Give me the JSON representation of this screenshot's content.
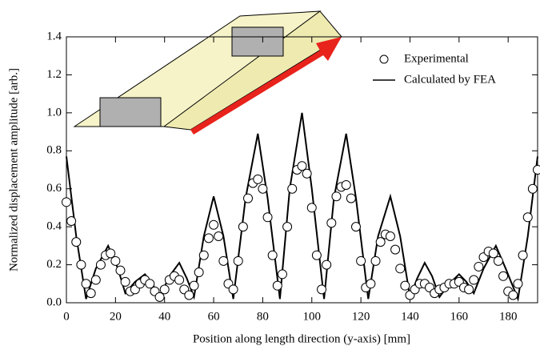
{
  "chart_data": {
    "type": "scatter-line",
    "x_label": "Position along length direction (y-axis) [mm]",
    "y_label": "Normalized displacement amplitude [arb.]",
    "xlim": [
      0,
      192
    ],
    "ylim": [
      0,
      1.4
    ],
    "xticks": [
      0,
      20,
      40,
      60,
      80,
      100,
      120,
      140,
      160,
      180
    ],
    "yticks": [
      {
        "value": 0,
        "label": "0.0"
      },
      0.2,
      0.4,
      0.6,
      0.8,
      {
        "value": 1,
        "label": "1.0"
      },
      1.2,
      1.4
    ],
    "series": [
      {
        "name": "Experimental",
        "kind": "scatter",
        "color": "#000000",
        "x": [
          0,
          2,
          4,
          6,
          8,
          10,
          12,
          14,
          16,
          18,
          20,
          22,
          24,
          26,
          28,
          30,
          32,
          34,
          36,
          38,
          40,
          42,
          44,
          46,
          48,
          50,
          52,
          54,
          56,
          58,
          60,
          62,
          64,
          66,
          68,
          70,
          72,
          74,
          76,
          78,
          80,
          82,
          84,
          86,
          88,
          90,
          92,
          94,
          96,
          98,
          100,
          102,
          104,
          106,
          108,
          110,
          112,
          114,
          116,
          118,
          120,
          122,
          124,
          126,
          128,
          130,
          132,
          134,
          136,
          138,
          140,
          142,
          144,
          146,
          148,
          150,
          152,
          154,
          156,
          158,
          160,
          162,
          164,
          166,
          168,
          170,
          172,
          174,
          176,
          178,
          180,
          182,
          184,
          186,
          188,
          190,
          192
        ],
        "values": [
          0.53,
          0.43,
          0.32,
          0.2,
          0.1,
          0.05,
          0.12,
          0.2,
          0.25,
          0.26,
          0.22,
          0.17,
          0.11,
          0.06,
          0.07,
          0.1,
          0.12,
          0.1,
          0.06,
          0.03,
          0.07,
          0.12,
          0.14,
          0.12,
          0.07,
          0.04,
          0.09,
          0.16,
          0.25,
          0.34,
          0.41,
          0.35,
          0.22,
          0.1,
          0.07,
          0.22,
          0.4,
          0.55,
          0.63,
          0.65,
          0.6,
          0.45,
          0.25,
          0.09,
          0.15,
          0.4,
          0.6,
          0.7,
          0.72,
          0.68,
          0.5,
          0.25,
          0.07,
          0.2,
          0.42,
          0.56,
          0.61,
          0.62,
          0.55,
          0.4,
          0.22,
          0.08,
          0.1,
          0.22,
          0.32,
          0.36,
          0.35,
          0.28,
          0.18,
          0.09,
          0.04,
          0.07,
          0.1,
          0.1,
          0.08,
          0.05,
          0.07,
          0.08,
          0.1,
          0.1,
          0.11,
          0.08,
          0.07,
          0.12,
          0.19,
          0.24,
          0.27,
          0.26,
          0.22,
          0.14,
          0.06,
          0.04,
          0.1,
          0.25,
          0.45,
          0.6,
          0.7
        ]
      },
      {
        "name": "Calculated by FEA",
        "kind": "line",
        "color": "#000000",
        "x": [
          0,
          4,
          8,
          12,
          17,
          21,
          24,
          28,
          32,
          35,
          38,
          42,
          46,
          49,
          52,
          56,
          60,
          64,
          68,
          73,
          78,
          82,
          87,
          91,
          96,
          100,
          105,
          109,
          114,
          118,
          123,
          127,
          132,
          136,
          140,
          143,
          146,
          149,
          152,
          156,
          160,
          163,
          166,
          170,
          175,
          179,
          184,
          188,
          192
        ],
        "values": [
          0.77,
          0.35,
          0.02,
          0.18,
          0.3,
          0.18,
          0.05,
          0.11,
          0.15,
          0.1,
          0.03,
          0.14,
          0.21,
          0.13,
          0.03,
          0.35,
          0.56,
          0.35,
          0.02,
          0.55,
          0.89,
          0.55,
          0.02,
          0.6,
          1.0,
          0.6,
          0.02,
          0.55,
          0.89,
          0.55,
          0.02,
          0.35,
          0.56,
          0.35,
          0.03,
          0.13,
          0.21,
          0.14,
          0.03,
          0.1,
          0.15,
          0.11,
          0.05,
          0.18,
          0.3,
          0.18,
          0.02,
          0.35,
          0.77
        ]
      }
    ]
  }
}
